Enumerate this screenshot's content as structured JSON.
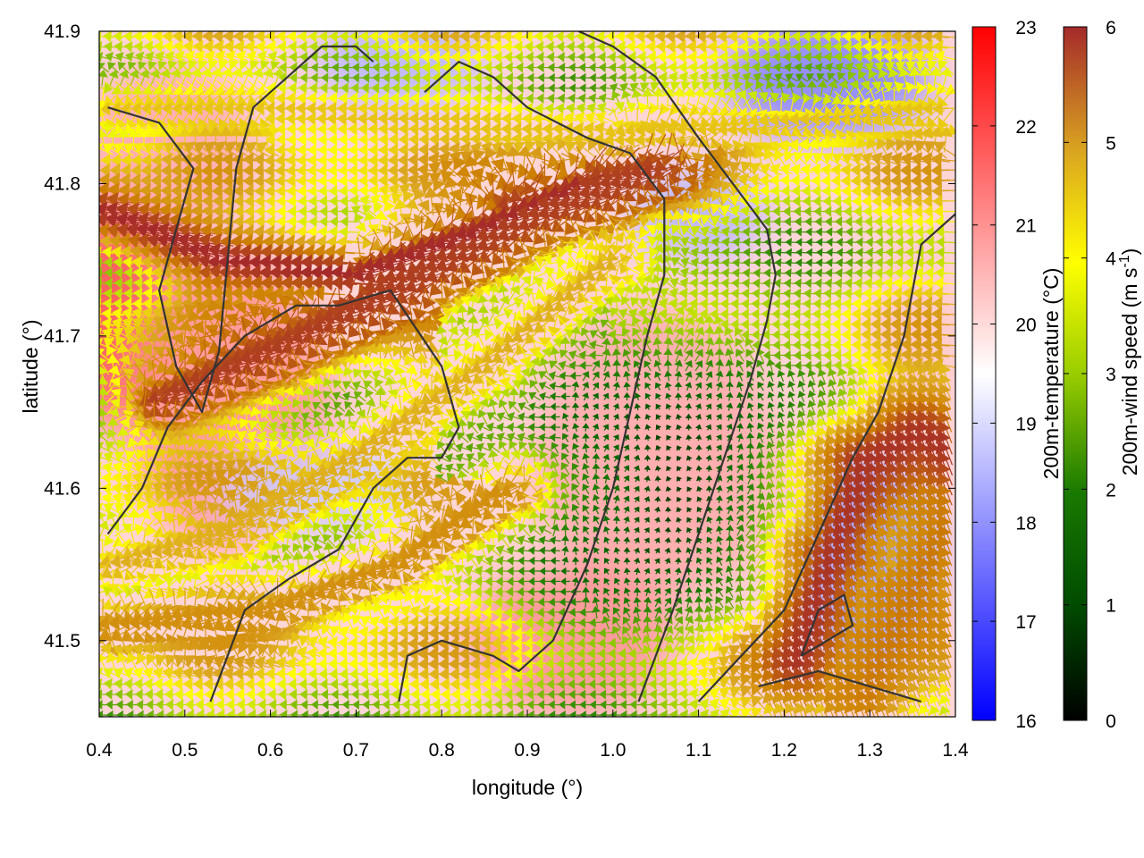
{
  "chart_data": {
    "type": "heatmap",
    "title": "",
    "xlabel": "longitude (°)",
    "ylabel": "latitude (°)",
    "xlim": [
      0.4,
      1.4
    ],
    "ylim": [
      41.45,
      41.9
    ],
    "x_ticks": [
      "0.4",
      "0.5",
      "0.6",
      "0.7",
      "0.8",
      "0.9",
      "1.0",
      "1.1",
      "1.2",
      "1.3",
      "1.4"
    ],
    "y_ticks": [
      "41.5",
      "41.6",
      "41.7",
      "41.8",
      "41.9"
    ],
    "temperature_colorbar": {
      "label": "200m-temperature (°C)",
      "range": [
        16,
        23
      ],
      "ticks": [
        "16",
        "17",
        "18",
        "19",
        "20",
        "21",
        "22",
        "23"
      ],
      "colors": [
        "#0000ff",
        "#ffffff",
        "#ff0000"
      ]
    },
    "wind_colorbar": {
      "label_main": "200m-wind speed (m s",
      "label_exp": "-1",
      "label_close": ")",
      "range": [
        0,
        6
      ],
      "ticks": [
        "0",
        "1",
        "2",
        "3",
        "4",
        "5",
        "6"
      ],
      "colors": [
        "#000000",
        "#006400",
        "#2e8b00",
        "#9acd00",
        "#ffff00",
        "#daa520",
        "#cd7f00",
        "#a52a2a"
      ]
    },
    "temperature_blobs": [
      {
        "lon": 0.42,
        "lat": 41.72,
        "rx": 0.06,
        "ry": 0.08,
        "temp": 22.0
      },
      {
        "lon": 0.55,
        "lat": 41.66,
        "rx": 0.12,
        "ry": 0.1,
        "temp": 21.0
      },
      {
        "lon": 0.48,
        "lat": 41.82,
        "rx": 0.1,
        "ry": 0.06,
        "temp": 20.7
      },
      {
        "lon": 0.75,
        "lat": 41.88,
        "rx": 0.1,
        "ry": 0.03,
        "temp": 18.5
      },
      {
        "lon": 1.25,
        "lat": 41.87,
        "rx": 0.12,
        "ry": 0.04,
        "temp": 17.8
      },
      {
        "lon": 1.1,
        "lat": 41.78,
        "rx": 0.08,
        "ry": 0.03,
        "temp": 18.5
      },
      {
        "lon": 1.05,
        "lat": 41.62,
        "rx": 0.14,
        "ry": 0.1,
        "temp": 20.7
      },
      {
        "lon": 0.95,
        "lat": 41.5,
        "rx": 0.12,
        "ry": 0.05,
        "temp": 21.0
      },
      {
        "lon": 0.65,
        "lat": 41.6,
        "rx": 0.12,
        "ry": 0.03,
        "temp": 18.8
      },
      {
        "lon": 1.3,
        "lat": 41.55,
        "rx": 0.08,
        "ry": 0.07,
        "temp": 18.2
      },
      {
        "lon": 1.35,
        "lat": 41.7,
        "rx": 0.05,
        "ry": 0.06,
        "temp": 20.3
      }
    ],
    "wind_bands": [
      {
        "path": [
          [
            0.42,
            41.78
          ],
          [
            0.55,
            41.75
          ],
          [
            0.7,
            41.74
          ],
          [
            0.85,
            41.77
          ],
          [
            0.97,
            41.8
          ]
        ],
        "width": 0.025,
        "speed": 6.0
      },
      {
        "path": [
          [
            0.48,
            41.66
          ],
          [
            0.6,
            41.69
          ],
          [
            0.75,
            41.73
          ],
          [
            0.9,
            41.78
          ],
          [
            1.05,
            41.81
          ]
        ],
        "width": 0.03,
        "speed": 5.8
      },
      {
        "path": [
          [
            0.42,
            41.55
          ],
          [
            0.55,
            41.57
          ],
          [
            0.7,
            41.62
          ],
          [
            0.85,
            41.68
          ],
          [
            1.0,
            41.75
          ]
        ],
        "width": 0.022,
        "speed": 4.2
      },
      {
        "path": [
          [
            0.42,
            41.51
          ],
          [
            0.6,
            41.52
          ],
          [
            0.75,
            41.55
          ],
          [
            0.88,
            41.6
          ]
        ],
        "width": 0.02,
        "speed": 4.8
      },
      {
        "path": [
          [
            0.42,
            41.85
          ],
          [
            0.6,
            41.85
          ],
          [
            0.8,
            41.84
          ],
          [
            1.0,
            41.83
          ],
          [
            1.2,
            41.84
          ],
          [
            1.4,
            41.85
          ]
        ],
        "width": 0.018,
        "speed": 4.0
      },
      {
        "path": [
          [
            1.22,
            41.48
          ],
          [
            1.26,
            41.55
          ],
          [
            1.3,
            41.61
          ],
          [
            1.36,
            41.63
          ],
          [
            1.4,
            41.62
          ]
        ],
        "width": 0.04,
        "speed": 5.9
      },
      {
        "path": [
          [
            1.3,
            41.46
          ],
          [
            1.35,
            41.52
          ],
          [
            1.4,
            41.58
          ]
        ],
        "width": 0.03,
        "speed": 5.2
      }
    ],
    "coast_contours": [
      [
        [
          0.41,
          41.57
        ],
        [
          0.45,
          41.6
        ],
        [
          0.48,
          41.64
        ],
        [
          0.52,
          41.67
        ],
        [
          0.57,
          41.7
        ],
        [
          0.63,
          41.72
        ],
        [
          0.68,
          41.72
        ],
        [
          0.74,
          41.73
        ],
        [
          0.8,
          41.68
        ],
        [
          0.82,
          41.64
        ],
        [
          0.8,
          41.62
        ],
        [
          0.76,
          41.62
        ],
        [
          0.72,
          41.6
        ],
        [
          0.68,
          41.56
        ],
        [
          0.62,
          41.54
        ],
        [
          0.57,
          41.52
        ],
        [
          0.53,
          41.46
        ]
      ],
      [
        [
          0.41,
          41.85
        ],
        [
          0.47,
          41.84
        ],
        [
          0.51,
          41.81
        ],
        [
          0.49,
          41.77
        ],
        [
          0.47,
          41.73
        ],
        [
          0.49,
          41.68
        ],
        [
          0.52,
          41.65
        ],
        [
          0.54,
          41.69
        ],
        [
          0.55,
          41.75
        ],
        [
          0.56,
          41.81
        ],
        [
          0.58,
          41.85
        ],
        [
          0.62,
          41.87
        ],
        [
          0.66,
          41.89
        ],
        [
          0.7,
          41.89
        ],
        [
          0.72,
          41.88
        ]
      ],
      [
        [
          0.75,
          41.46
        ],
        [
          0.76,
          41.49
        ],
        [
          0.8,
          41.5
        ],
        [
          0.86,
          41.49
        ],
        [
          0.89,
          41.48
        ],
        [
          0.93,
          41.5
        ],
        [
          0.97,
          41.55
        ],
        [
          1.0,
          41.6
        ],
        [
          1.02,
          41.65
        ],
        [
          1.04,
          41.7
        ],
        [
          1.06,
          41.74
        ],
        [
          1.06,
          41.79
        ],
        [
          1.02,
          41.82
        ],
        [
          0.97,
          41.83
        ],
        [
          0.9,
          41.85
        ],
        [
          0.86,
          41.87
        ],
        [
          0.82,
          41.88
        ],
        [
          0.78,
          41.86
        ]
      ],
      [
        [
          1.03,
          41.46
        ],
        [
          1.07,
          41.52
        ],
        [
          1.1,
          41.57
        ],
        [
          1.13,
          41.62
        ],
        [
          1.16,
          41.67
        ],
        [
          1.18,
          41.71
        ],
        [
          1.19,
          41.74
        ],
        [
          1.18,
          41.77
        ],
        [
          1.14,
          41.8
        ],
        [
          1.1,
          41.83
        ],
        [
          1.05,
          41.87
        ],
        [
          1.0,
          41.89
        ],
        [
          0.96,
          41.9
        ]
      ],
      [
        [
          1.1,
          41.46
        ],
        [
          1.15,
          41.49
        ],
        [
          1.2,
          41.52
        ],
        [
          1.24,
          41.57
        ],
        [
          1.28,
          41.62
        ],
        [
          1.31,
          41.65
        ],
        [
          1.34,
          41.7
        ],
        [
          1.36,
          41.76
        ],
        [
          1.38,
          41.77
        ],
        [
          1.4,
          41.78
        ]
      ],
      [
        [
          1.22,
          41.49
        ],
        [
          1.25,
          41.5
        ],
        [
          1.28,
          41.51
        ],
        [
          1.27,
          41.53
        ],
        [
          1.24,
          41.52
        ],
        [
          1.22,
          41.49
        ]
      ],
      [
        [
          1.17,
          41.47
        ],
        [
          1.24,
          41.48
        ],
        [
          1.3,
          41.47
        ],
        [
          1.36,
          41.46
        ]
      ]
    ]
  }
}
